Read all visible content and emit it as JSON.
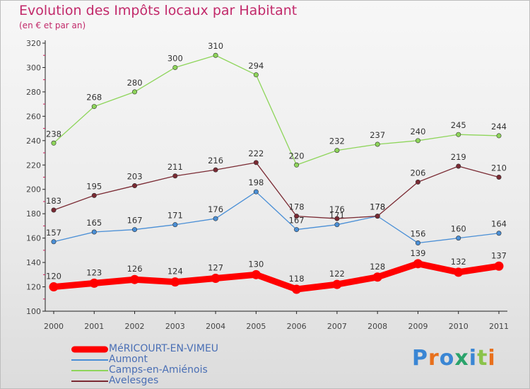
{
  "header": {
    "title": "Evolution des Impôts locaux par Habitant",
    "subtitle": "(en € et par an)"
  },
  "logo": {
    "text": "Proxiti",
    "colors": [
      "#3a86d4",
      "#e8701c",
      "#3a86d4",
      "#2aa36b",
      "#3a86d4",
      "#8bc34a",
      "#e8701c"
    ]
  },
  "chart_data": {
    "type": "line",
    "title": "Evolution des Impôts locaux par Habitant",
    "subtitle": "(en € et par an)",
    "x": [
      "2000",
      "2001",
      "2002",
      "2003",
      "2004",
      "2005",
      "2006",
      "2007",
      "2008",
      "2009",
      "2010",
      "2011"
    ],
    "ylim": [
      100,
      320
    ],
    "yticks": [
      100,
      120,
      140,
      160,
      180,
      200,
      220,
      240,
      260,
      280,
      300,
      320
    ],
    "grid": false,
    "legend_position": "bottom-left",
    "series": [
      {
        "name": "MéRICOURT-EN-VIMEU",
        "color": "#ff0000",
        "values": [
          120,
          123,
          126,
          124,
          127,
          130,
          118,
          122,
          128,
          139,
          132,
          137
        ],
        "emphasis": true
      },
      {
        "name": "Aumont",
        "color": "#4a8fd6",
        "values": [
          157,
          165,
          167,
          171,
          176,
          198,
          167,
          171,
          178,
          156,
          160,
          164
        ]
      },
      {
        "name": "Camps-en-Amiénois",
        "color": "#8ed55a",
        "values": [
          238,
          268,
          280,
          300,
          310,
          294,
          220,
          232,
          237,
          240,
          245,
          244
        ]
      },
      {
        "name": "Avelesges",
        "color": "#7a2a33",
        "values": [
          183,
          195,
          203,
          211,
          216,
          222,
          178,
          176,
          178,
          206,
          219,
          210
        ]
      }
    ]
  }
}
